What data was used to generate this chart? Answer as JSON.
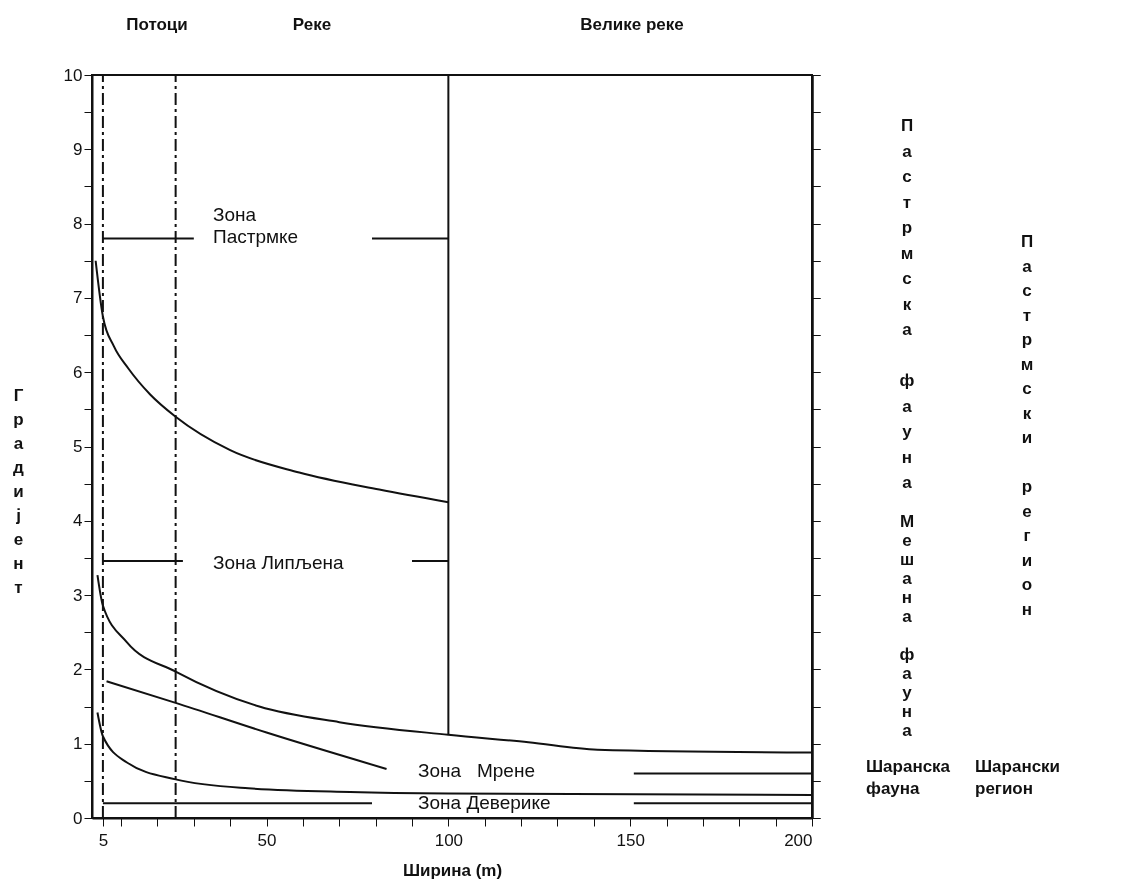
{
  "chart_data": {
    "type": "line",
    "xlabel": "Ширина (m)",
    "ylabel": "Градијент",
    "xlim": [
      2,
      200
    ],
    "ylim": [
      0,
      10
    ],
    "xticks": [
      5,
      {
        "value": 10,
        "label": null
      },
      {
        "value": 20,
        "label": null
      },
      {
        "value": 30,
        "label": null
      },
      {
        "value": 40,
        "label": null
      },
      50,
      {
        "value": 60,
        "label": null
      },
      {
        "value": 70,
        "label": null
      },
      {
        "value": 80,
        "label": null
      },
      {
        "value": 90,
        "label": null
      },
      100,
      {
        "value": 110,
        "label": null
      },
      {
        "value": 120,
        "label": null
      },
      {
        "value": 130,
        "label": null
      },
      {
        "value": 140,
        "label": null
      },
      150,
      {
        "value": 160,
        "label": null
      },
      {
        "value": 170,
        "label": null
      },
      {
        "value": 180,
        "label": null
      },
      {
        "value": 190,
        "label": null
      },
      200
    ],
    "yticks": [
      0,
      {
        "value": 0.5,
        "label": null
      },
      1,
      {
        "value": 1.5,
        "label": null
      },
      2,
      {
        "value": 2.5,
        "label": null
      },
      3,
      {
        "value": 3.5,
        "label": null
      },
      4,
      {
        "value": 4.5,
        "label": null
      },
      5,
      {
        "value": 5.5,
        "label": null
      },
      6,
      {
        "value": 6.5,
        "label": null
      },
      7,
      {
        "value": 7.5,
        "label": null
      },
      8,
      {
        "value": 8.5,
        "label": null
      },
      9,
      {
        "value": 9.5,
        "label": null
      },
      10
    ],
    "series": [
      {
        "color": "#111111",
        "x": [
          3,
          5,
          8,
          12,
          18,
          25,
          40,
          59,
          81,
          100
        ],
        "values": [
          7.5,
          6.75,
          6.35,
          6.05,
          5.7,
          5.4,
          4.95,
          4.65,
          4.42,
          4.25
        ]
      },
      {
        "color": "#111111",
        "x": [
          3.5,
          5,
          11.5,
          25,
          48,
          70,
          100,
          122,
          141,
          200
        ],
        "values": [
          3.27,
          2.86,
          2.37,
          1.97,
          1.5,
          1.29,
          1.12,
          1.02,
          0.92,
          0.88
        ]
      },
      {
        "color": "#111111",
        "x": [
          6,
          25,
          50,
          83
        ],
        "values": [
          1.84,
          1.55,
          1.15,
          0.66
        ]
      },
      {
        "color": "#111111",
        "x": [
          3.5,
          5,
          11.5,
          25,
          45,
          73,
          100,
          200
        ],
        "values": [
          1.42,
          1.1,
          0.75,
          0.52,
          0.4,
          0.35,
          0.33,
          0.31
        ]
      },
      {
        "color": "#111111",
        "x": [
          100,
          100
        ],
        "values": [
          1.12,
          10
        ]
      },
      {
        "color": "#111111",
        "x": [
          5,
          30
        ],
        "values": [
          7.8,
          7.8
        ]
      },
      {
        "color": "#111111",
        "x": [
          79,
          100
        ],
        "values": [
          7.8,
          7.8
        ]
      },
      {
        "color": "#111111",
        "x": [
          5,
          27
        ],
        "values": [
          3.46,
          3.46
        ]
      },
      {
        "color": "#111111",
        "x": [
          90,
          100
        ],
        "values": [
          3.46,
          3.46
        ]
      },
      {
        "color": "#111111",
        "x": [
          151,
          200
        ],
        "values": [
          0.6,
          0.6
        ]
      },
      {
        "color": "#111111",
        "x": [
          5,
          79
        ],
        "values": [
          0.2,
          0.2
        ]
      },
      {
        "color": "#111111",
        "x": [
          151,
          200
        ],
        "values": [
          0.2,
          0.2
        ]
      }
    ],
    "ref_lines": [
      {
        "axis": "x",
        "value": 5,
        "line_style": "dashed"
      },
      {
        "axis": "x",
        "value": 25,
        "line_style": "dashed"
      }
    ],
    "annotations": [
      "Потоци",
      "Реке",
      "Велике реке",
      "Пастрмска фауна",
      "Мешана фауна",
      "Шаранска фауна",
      "Пастрмски регион",
      "Шарански регион",
      "Зона Пастрмке",
      "Зона Липљена",
      "Зона   Мрене",
      "Зона Деверике"
    ]
  }
}
